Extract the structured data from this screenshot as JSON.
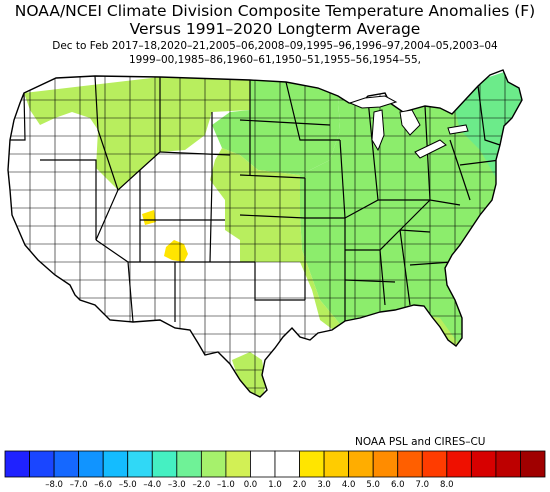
{
  "title_line1": "NOAA/NCEI Climate Division Composite Temperature Anomalies (F)",
  "title_line2": "Versus 1991–2020 Longterm Average",
  "subtitle_line1": "Dec to Feb  2017–18,2020–21,2005–06,2008–09,1995–96,1996–97,2004–05,2003–04",
  "subtitle_line2": "1999–00,1985–86,1960–61,1950–51,1955–56,1954–55,",
  "credit": "NOAA PSL and CIRES–CU",
  "legend": {
    "ticks": [
      "–8.0",
      "–7.0",
      "–6.0",
      "–5.0",
      "–4.0",
      "–3.0",
      "–2.0",
      "–1.0",
      "0.0",
      "1.0",
      "2.0",
      "3.0",
      "4.0",
      "5.0",
      "6.0",
      "7.0",
      "8.0"
    ],
    "colors": [
      "#1f22ff",
      "#1a46ff",
      "#1568ff",
      "#1194ff",
      "#14bcff",
      "#30d8f6",
      "#45f0c2",
      "#6ff297",
      "#a6f16c",
      "#d2f055",
      "#ffffff",
      "#ffffff",
      "#ffe500",
      "#ffcc00",
      "#ffad00",
      "#ff8c00",
      "#ff5f00",
      "#ff3c00",
      "#ef1000",
      "#d70000",
      "#bd0000",
      "#a00000"
    ]
  },
  "map_colors": {
    "neutral": "#ffffff",
    "light_green": "#b8ee5e",
    "green": "#8ced6c",
    "teal_green": "#6ceb8a",
    "yellow": "#ffe500",
    "border": "#000000"
  }
}
